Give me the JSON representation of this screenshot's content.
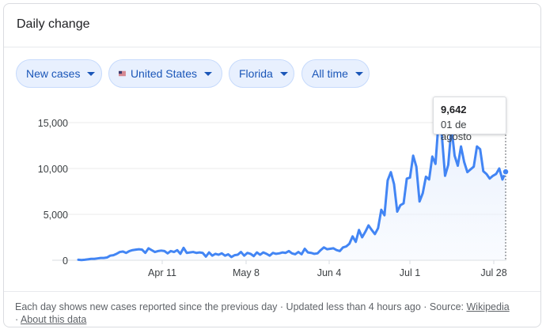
{
  "card": {
    "title": "Daily change"
  },
  "filters": {
    "metric": "New cases",
    "country": "United States",
    "region": "Florida",
    "range": "All time"
  },
  "tooltip": {
    "value": "9,642",
    "date": "01 de agosto"
  },
  "footer": {
    "text": "Each day shows new cases reported since the previous day · Updated less than 4 hours ago ·",
    "source_label": "Source:",
    "source_link": "Wikipedia",
    "about_link": "About this data"
  },
  "colors": {
    "line": "#4285f4",
    "area": "#e8f0fe",
    "chip_bg": "#e8f0fe",
    "chip_text": "#1a56b8"
  },
  "chart_data": {
    "type": "area",
    "ylim": [
      0,
      15000
    ],
    "yticks": [
      0,
      5000,
      10000,
      15000
    ],
    "ytick_labels": [
      "0",
      "5,000",
      "10,000",
      "15,000"
    ],
    "xticks": [
      "Apr 11",
      "May 8",
      "Jun 4",
      "Jul 1",
      "Jul 28"
    ],
    "grid": true,
    "series": [
      {
        "values": [
          50,
          20,
          50,
          100,
          150,
          150,
          200,
          250,
          250,
          300,
          500,
          550,
          700,
          900,
          950,
          800,
          1000,
          1100,
          1150,
          1200,
          1150,
          800,
          1300,
          1100,
          900,
          1000,
          1050,
          1000,
          750,
          1000,
          900,
          1100,
          700,
          1350,
          800,
          850,
          900,
          800,
          850,
          800,
          400,
          850,
          500,
          700,
          600,
          750,
          500,
          650,
          350,
          550,
          600,
          900,
          500,
          800,
          700,
          450,
          850,
          600,
          850,
          700,
          500,
          800,
          700,
          750,
          850,
          800,
          1000,
          750,
          650,
          900,
          650,
          1250,
          850,
          800,
          700,
          750,
          1100,
          1400,
          1200,
          1250,
          1300,
          1100,
          1000,
          1400,
          1500,
          1800,
          2600,
          2000,
          3300,
          2500,
          3100,
          3800,
          3300,
          2850,
          3500,
          5500,
          4900,
          8700,
          9600,
          8300,
          5300,
          6000,
          6200,
          8900,
          9000,
          11400,
          10200,
          6400,
          7300,
          9100,
          8800,
          11300,
          10500,
          15300,
          13600,
          9200,
          10400,
          14500,
          11400,
          10300,
          12400,
          10700,
          9600,
          9900,
          10200,
          12400,
          12100,
          9700,
          9400,
          8900,
          9200,
          9400,
          10000,
          8800,
          9642
        ]
      }
    ]
  }
}
